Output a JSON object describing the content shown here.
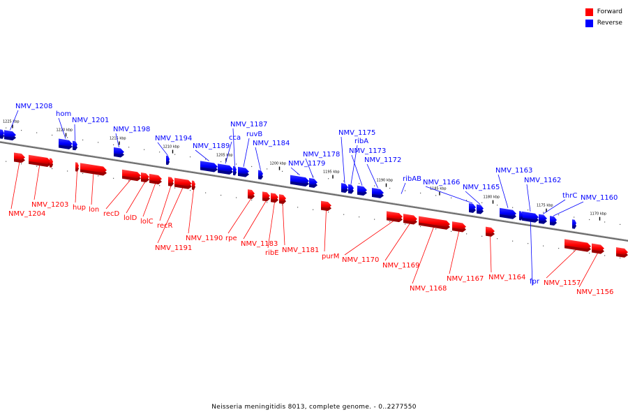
{
  "legend": {
    "forward_label": "Forward",
    "reverse_label": "Reverse",
    "forward_color": "#ff0000",
    "reverse_color": "#0000ff"
  },
  "caption": "Neisseria meningitidis 8013, complete genome. - 0..2277550",
  "ticks": [
    "1225 kbp",
    "1220 kbp",
    "1215 kbp",
    "1210 kbp",
    "1205 kbp",
    "1200 kbp",
    "1195 kbp",
    "1190 kbp",
    "1185 kbp",
    "1180 kbp",
    "1175 kbp",
    "1170 kbp"
  ],
  "reverse_genes": [
    "NMV_1208",
    "hom",
    "NMV_1201",
    "NMV_1198",
    "NMV_1194",
    "NMV_1189",
    "cca",
    "NMV_1187",
    "ruvB",
    "NMV_1184",
    "NMV_1179",
    "NMV_1178",
    "NMV_1175",
    "ribA",
    "NMV_1173",
    "NMV_1172",
    "ribAB",
    "NMV_1166",
    "NMV_1165",
    "NMV_1163",
    "NMV_1162",
    "thrC",
    "NMV_1160",
    "fpr"
  ],
  "forward_genes": [
    "NMV_1204",
    "NMV_1203",
    "hup",
    "lon",
    "recD",
    "lolD",
    "lolC",
    "recR",
    "NMV_1191",
    "NMV_1190",
    "rpe",
    "NMV_1183",
    "ribE",
    "NMV_1181",
    "purM",
    "NMV_1170",
    "NMV_1169",
    "NMV_1168",
    "NMV_1167",
    "NMV_1164",
    "NMV_1157",
    "NMV_1156"
  ]
}
